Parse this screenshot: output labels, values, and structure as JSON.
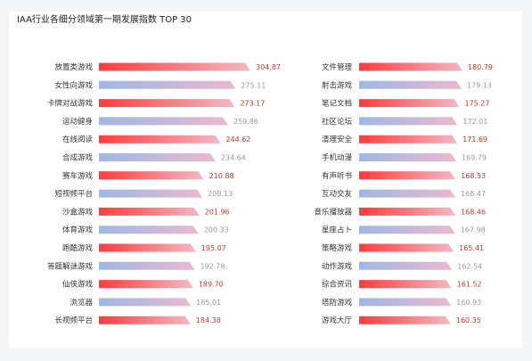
{
  "title": "IAA行业各细分领域第一期发展指数 TOP 30",
  "colors": {
    "highlight_start": "#ff3b3b",
    "highlight_end": "#f2b8c4",
    "muted_start": "#9db8e6",
    "muted_end": "#eab9ce",
    "highlight_value": "#c0392b",
    "muted_value": "#999999"
  },
  "chart_data": [
    {
      "type": "bar",
      "orientation": "horizontal",
      "categories": [
        "放置类游戏",
        "女性向游戏",
        "卡牌对战游戏",
        "运动健身",
        "在线阅读",
        "合成游戏",
        "赛车游戏",
        "短视频平台",
        "沙盒游戏",
        "体育游戏",
        "跑酷游戏",
        "答题解谜游戏",
        "仙侠游戏",
        "浏览器",
        "长视频平台"
      ],
      "values": [
        304.87,
        275.11,
        273.17,
        259.86,
        244.62,
        234.64,
        210.88,
        208.13,
        201.96,
        200.33,
        195.07,
        192.78,
        189.7,
        185.01,
        184.38
      ],
      "value_labels": [
        "304.87",
        "275.11",
        "273.17",
        "259.86",
        "244.62",
        "234.64",
        "210.88",
        "208.13",
        "201.96",
        "200.33",
        "195.07",
        "192.78",
        "189.70",
        "185.01",
        "184.38"
      ],
      "highlight": [
        true,
        false,
        true,
        false,
        true,
        false,
        true,
        false,
        true,
        false,
        true,
        false,
        true,
        false,
        true
      ]
    },
    {
      "type": "bar",
      "orientation": "horizontal",
      "categories": [
        "文件管理",
        "射击游戏",
        "笔记文档",
        "社区论坛",
        "清理安全",
        "手机动漫",
        "有声听书",
        "互动交友",
        "音乐播放器",
        "星座占卜",
        "策略游戏",
        "动作游戏",
        "综合资讯",
        "塔防游戏",
        "游戏大厅"
      ],
      "values": [
        180.79,
        179.13,
        175.27,
        172.01,
        171.69,
        169.79,
        168.53,
        168.47,
        168.46,
        167.98,
        165.41,
        162.54,
        161.52,
        160.93,
        160.35
      ],
      "value_labels": [
        "180.79",
        "179.13",
        "175.27",
        "172.01",
        "171.69",
        "169.79",
        "168.53",
        "168.47",
        "168.46",
        "167.98",
        "165.41",
        "162.54",
        "161.52",
        "160.93",
        "160.35"
      ],
      "highlight": [
        true,
        false,
        true,
        false,
        true,
        false,
        true,
        false,
        true,
        false,
        true,
        false,
        true,
        false,
        true
      ]
    }
  ]
}
